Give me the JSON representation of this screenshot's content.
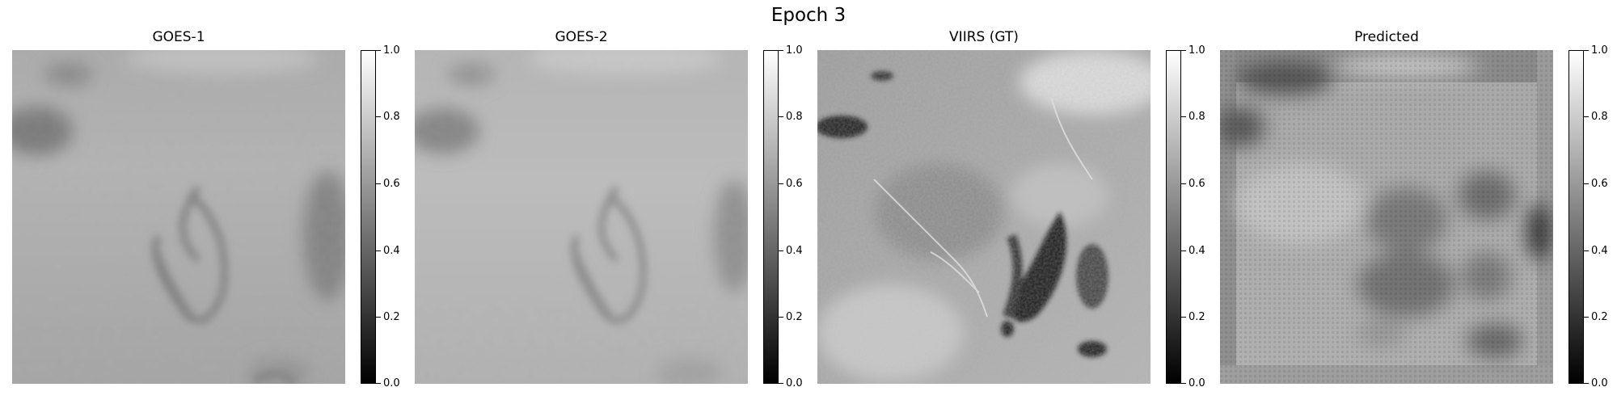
{
  "figure": {
    "suptitle": "Epoch 3"
  },
  "chart_data": [
    {
      "type": "heatmap",
      "title": "GOES-1",
      "colormap": "gray",
      "colorbar": {
        "vmin": 0.0,
        "vmax": 1.0,
        "ticks": [
          "0.0",
          "0.2",
          "0.4",
          "0.6",
          "0.8",
          "1.0"
        ]
      },
      "base_intensity": 0.62,
      "description_level": "mean brightness approx. 0.6 with darker cloud streaks"
    },
    {
      "type": "heatmap",
      "title": "GOES-2",
      "colormap": "gray",
      "colorbar": {
        "vmin": 0.0,
        "vmax": 1.0,
        "ticks": [
          "0.0",
          "0.2",
          "0.4",
          "0.6",
          "0.8",
          "1.0"
        ]
      },
      "base_intensity": 0.68
    },
    {
      "type": "heatmap",
      "title": "VIIRS (GT)",
      "colormap": "gray",
      "colorbar": {
        "vmin": 0.0,
        "vmax": 1.0,
        "ticks": [
          "0.0",
          "0.2",
          "0.4",
          "0.6",
          "0.8",
          "1.0"
        ]
      },
      "base_intensity": 0.62
    },
    {
      "type": "heatmap",
      "title": "Predicted",
      "colormap": "gray",
      "colorbar": {
        "vmin": 0.0,
        "vmax": 1.0,
        "ticks": [
          "0.0",
          "0.2",
          "0.4",
          "0.6",
          "0.8",
          "1.0"
        ]
      },
      "base_intensity": 0.6
    }
  ]
}
